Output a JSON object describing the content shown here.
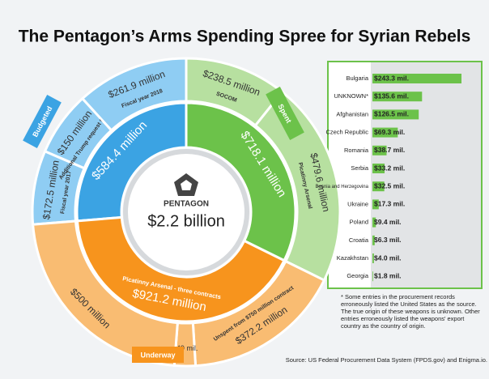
{
  "chart_data": [
    {
      "type": "sunburst",
      "title": "The Pentagon’s Arms Spending Spree for Syrian Rebels",
      "center_label": "PENTAGON",
      "total_label": "$2.2 billion",
      "groups": [
        {
          "name": "Budgeted",
          "color": "#3ba3e3",
          "light_color": "#8fcdf3",
          "value": 584.4,
          "value_label": "$584.4 million",
          "segments": [
            {
              "label": "Fiscal year 2017",
              "value": 172.5,
              "value_label": "$172.5 million"
            },
            {
              "label": "Additional Trump request for 2017",
              "value": 150,
              "value_label": "$150 million"
            },
            {
              "label": "Fiscal year 2018",
              "value": 261.9,
              "value_label": "$261.9 million"
            }
          ]
        },
        {
          "name": "Spent",
          "color": "#6cc24a",
          "light_color": "#b7e0a0",
          "value": 718.1,
          "value_label": "$718.1 million",
          "segments": [
            {
              "label": "SOCOM",
              "value": 238.5,
              "value_label": "$238.5 million"
            },
            {
              "label": "Picatinny Arsenal",
              "value": 479.6,
              "value_label": "$479.6 million"
            }
          ]
        },
        {
          "name": "Underway",
          "color": "#f7941d",
          "light_color": "#f9bc72",
          "value": 921.2,
          "value_label": "$921.2 million",
          "sublabel": "Picatinny Arsenal - three contracts",
          "segments": [
            {
              "label": "Unspent from $750 million contract",
              "value": 372.2,
              "value_label": "$372.2 million"
            },
            {
              "label": null,
              "value": 49,
              "value_label": "$49 mil."
            },
            {
              "label": null,
              "value": 500,
              "value_label": "$500 million"
            }
          ]
        }
      ]
    },
    {
      "type": "bar",
      "categories": [
        "Bulgaria",
        "UNKNOWN*",
        "Afghanistan",
        "Czech Republic",
        "Romania",
        "Serbia",
        "Bosnia and Herzegovina",
        "Ukraine",
        "Poland",
        "Croatia",
        "Kazakhstan",
        "Georgia"
      ],
      "values": [
        243.3,
        135.6,
        126.5,
        69.3,
        38.7,
        33.2,
        32.5,
        17.3,
        9.4,
        6.3,
        4.0,
        1.8
      ],
      "value_labels": [
        "$243.3 mil.",
        "$135.6 mil.",
        "$126.5 mil.",
        "$69.3 mil.",
        "$38.7 mil.",
        "$33.2 mil.",
        "$32.5 mil.",
        "$17.3 mil.",
        "$9.4 mil.",
        "$6.3 mil.",
        "$4.0 mil.",
        "$1.8 mil."
      ],
      "color": "#6cc24a",
      "note": "* Some entries in the procurement records erroneously listed the United States as the source. The true origin of these weapons is unknown. Other entries erroneously listed the weapons' export country as the country of origin.",
      "source": "Source: US Federal Procurement Data System (FPDS.gov) and Enigma.io."
    }
  ]
}
